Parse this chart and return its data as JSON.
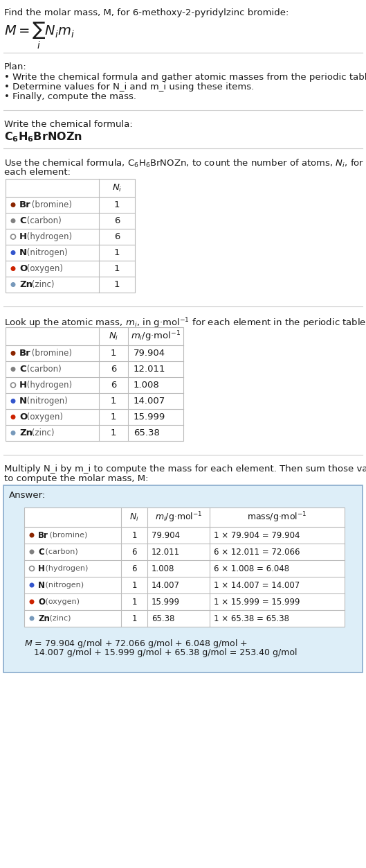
{
  "title_line": "Find the molar mass, M, for 6-methoxy-2-pyridylzinc bromide:",
  "plan_header": "Plan:",
  "plan_bullets": [
    "Write the chemical formula and gather atomic masses from the periodic table.",
    "Determine values for N_i and m_i using these items.",
    "Finally, compute the mass."
  ],
  "formula_section_header": "Write the chemical formula:",
  "count_section_intro1": "Use the chemical formula, C₆H₆BrNOZn, to count the number of atoms, N_i, for",
  "count_section_intro2": "each element:",
  "lookup_section_intro": "Look up the atomic mass, m_i, in g·mol⁻¹ for each element in the periodic table:",
  "multiply_intro1": "Multiply N_i by m_i to compute the mass for each element. Then sum those values",
  "multiply_intro2": "to compute the molar mass, M:",
  "elements": [
    {
      "symbol": "Br",
      "name": "bromine",
      "color": "#8B2500",
      "hollow": false,
      "N_i": "1",
      "m_i": "79.904",
      "mass_str": "1 × 79.904 = 79.904"
    },
    {
      "symbol": "C",
      "name": "carbon",
      "color": "#808080",
      "hollow": false,
      "N_i": "6",
      "m_i": "12.011",
      "mass_str": "6 × 12.011 = 72.066"
    },
    {
      "symbol": "H",
      "name": "hydrogen",
      "color": "#888888",
      "hollow": true,
      "N_i": "6",
      "m_i": "1.008",
      "mass_str": "6 × 1.008 = 6.048"
    },
    {
      "symbol": "N",
      "name": "nitrogen",
      "color": "#3355CC",
      "hollow": false,
      "N_i": "1",
      "m_i": "14.007",
      "mass_str": "1 × 14.007 = 14.007"
    },
    {
      "symbol": "O",
      "name": "oxygen",
      "color": "#CC2200",
      "hollow": false,
      "N_i": "1",
      "m_i": "15.999",
      "mass_str": "1 × 15.999 = 15.999"
    },
    {
      "symbol": "Zn",
      "name": "zinc",
      "color": "#7799BB",
      "hollow": false,
      "N_i": "1",
      "m_i": "65.38",
      "mass_str": "1 × 65.38 = 65.38"
    }
  ],
  "final_line1": "M = 79.904 g/mol + 72.066 g/mol + 6.048 g/mol +",
  "final_line2": "    14.007 g/mol + 15.999 g/mol + 65.38 g/mol = 253.40 g/mol",
  "bg_color": "#ffffff",
  "answer_bg": "#ddeef8",
  "answer_border": "#88aacc",
  "table_line_color": "#bbbbbb",
  "text_color": "#1a1a1a",
  "gray_text": "#555555"
}
